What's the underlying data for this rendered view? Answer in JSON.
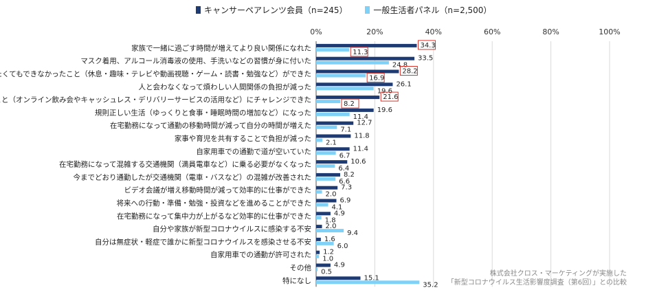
{
  "chart_data": {
    "type": "bar",
    "orientation": "horizontal",
    "categories": [
      "家族で一緒に過ごす時間が増えてより良い関係になれた",
      "マスク着用、アルコール消毒液の使用、手洗いなどの習慣が身に付いた",
      "やりたくてもできなかったこと（休息・趣味・テレビや動画視聴・ゲーム・読書・勉強など）ができた",
      "人と会わなくなって煩わしい人間関係の負担が減った",
      "新しいこと（オンライン飲み会やキャッシュレス・デリバリーサービスの活用など）にチャレンジできた",
      "規則正しい生活（ゆっくりと食事・睡眠時間の増加など）になった",
      "在宅勤務になって通勤の移動時間が減って自分の時間が増えた",
      "家事や育児を共有することで負担が減った",
      "自家用車での通勤で道が空いていた",
      "在宅勤務になって混雑する交通機関（満員電車など）に乗る必要がなくなった",
      "今までどおり通勤したが交通機関（電車・バスなど）の混雑が改善された",
      "ビデオ会議が増え移動時間が減って効率的に仕事ができた",
      "将来への行動・準備・勉強・投資などを進めることができた",
      "在宅勤務になって集中力が上がるなど効率的に仕事ができた",
      "自分や家族が新型コロナウイルスに感染する不安",
      "自分は無症状・軽症で誰かに新型コロナウイルスを感染させる不安",
      "自家用車での通勤が許可された",
      "その他",
      "特になし"
    ],
    "series": [
      {
        "name": "キャンサーペアレンツ会員（n=245）",
        "color": "#1f3b73",
        "values": [
          34.3,
          33.5,
          28.2,
          26.1,
          21.6,
          19.6,
          12.7,
          11.8,
          11.4,
          10.6,
          8.2,
          7.3,
          6.9,
          4.9,
          2.0,
          1.6,
          1.2,
          4.9,
          15.1
        ]
      },
      {
        "name": "一般生活者パネル（n=2,500）",
        "color": "#7fd1f7",
        "values": [
          11.3,
          24.8,
          16.9,
          19.6,
          8.2,
          11.4,
          7.1,
          2.1,
          6.7,
          6.4,
          6.6,
          2.0,
          4.1,
          1.8,
          9.4,
          6.0,
          1.0,
          0.5,
          35.2
        ]
      }
    ],
    "x_ticks": [
      "0%",
      "20%",
      "40%",
      "60%",
      "80%",
      "100%"
    ],
    "xlim": [
      0,
      100
    ],
    "grid": true,
    "legend_position": "top",
    "highlight_rows": [
      0,
      2,
      4
    ],
    "highlight_color": "#d9342b"
  },
  "notes": [
    "株式会社クロス・マーケティングが実施した",
    "「新型コロナウイルス生活影響度調査（第6回）」との比較"
  ]
}
